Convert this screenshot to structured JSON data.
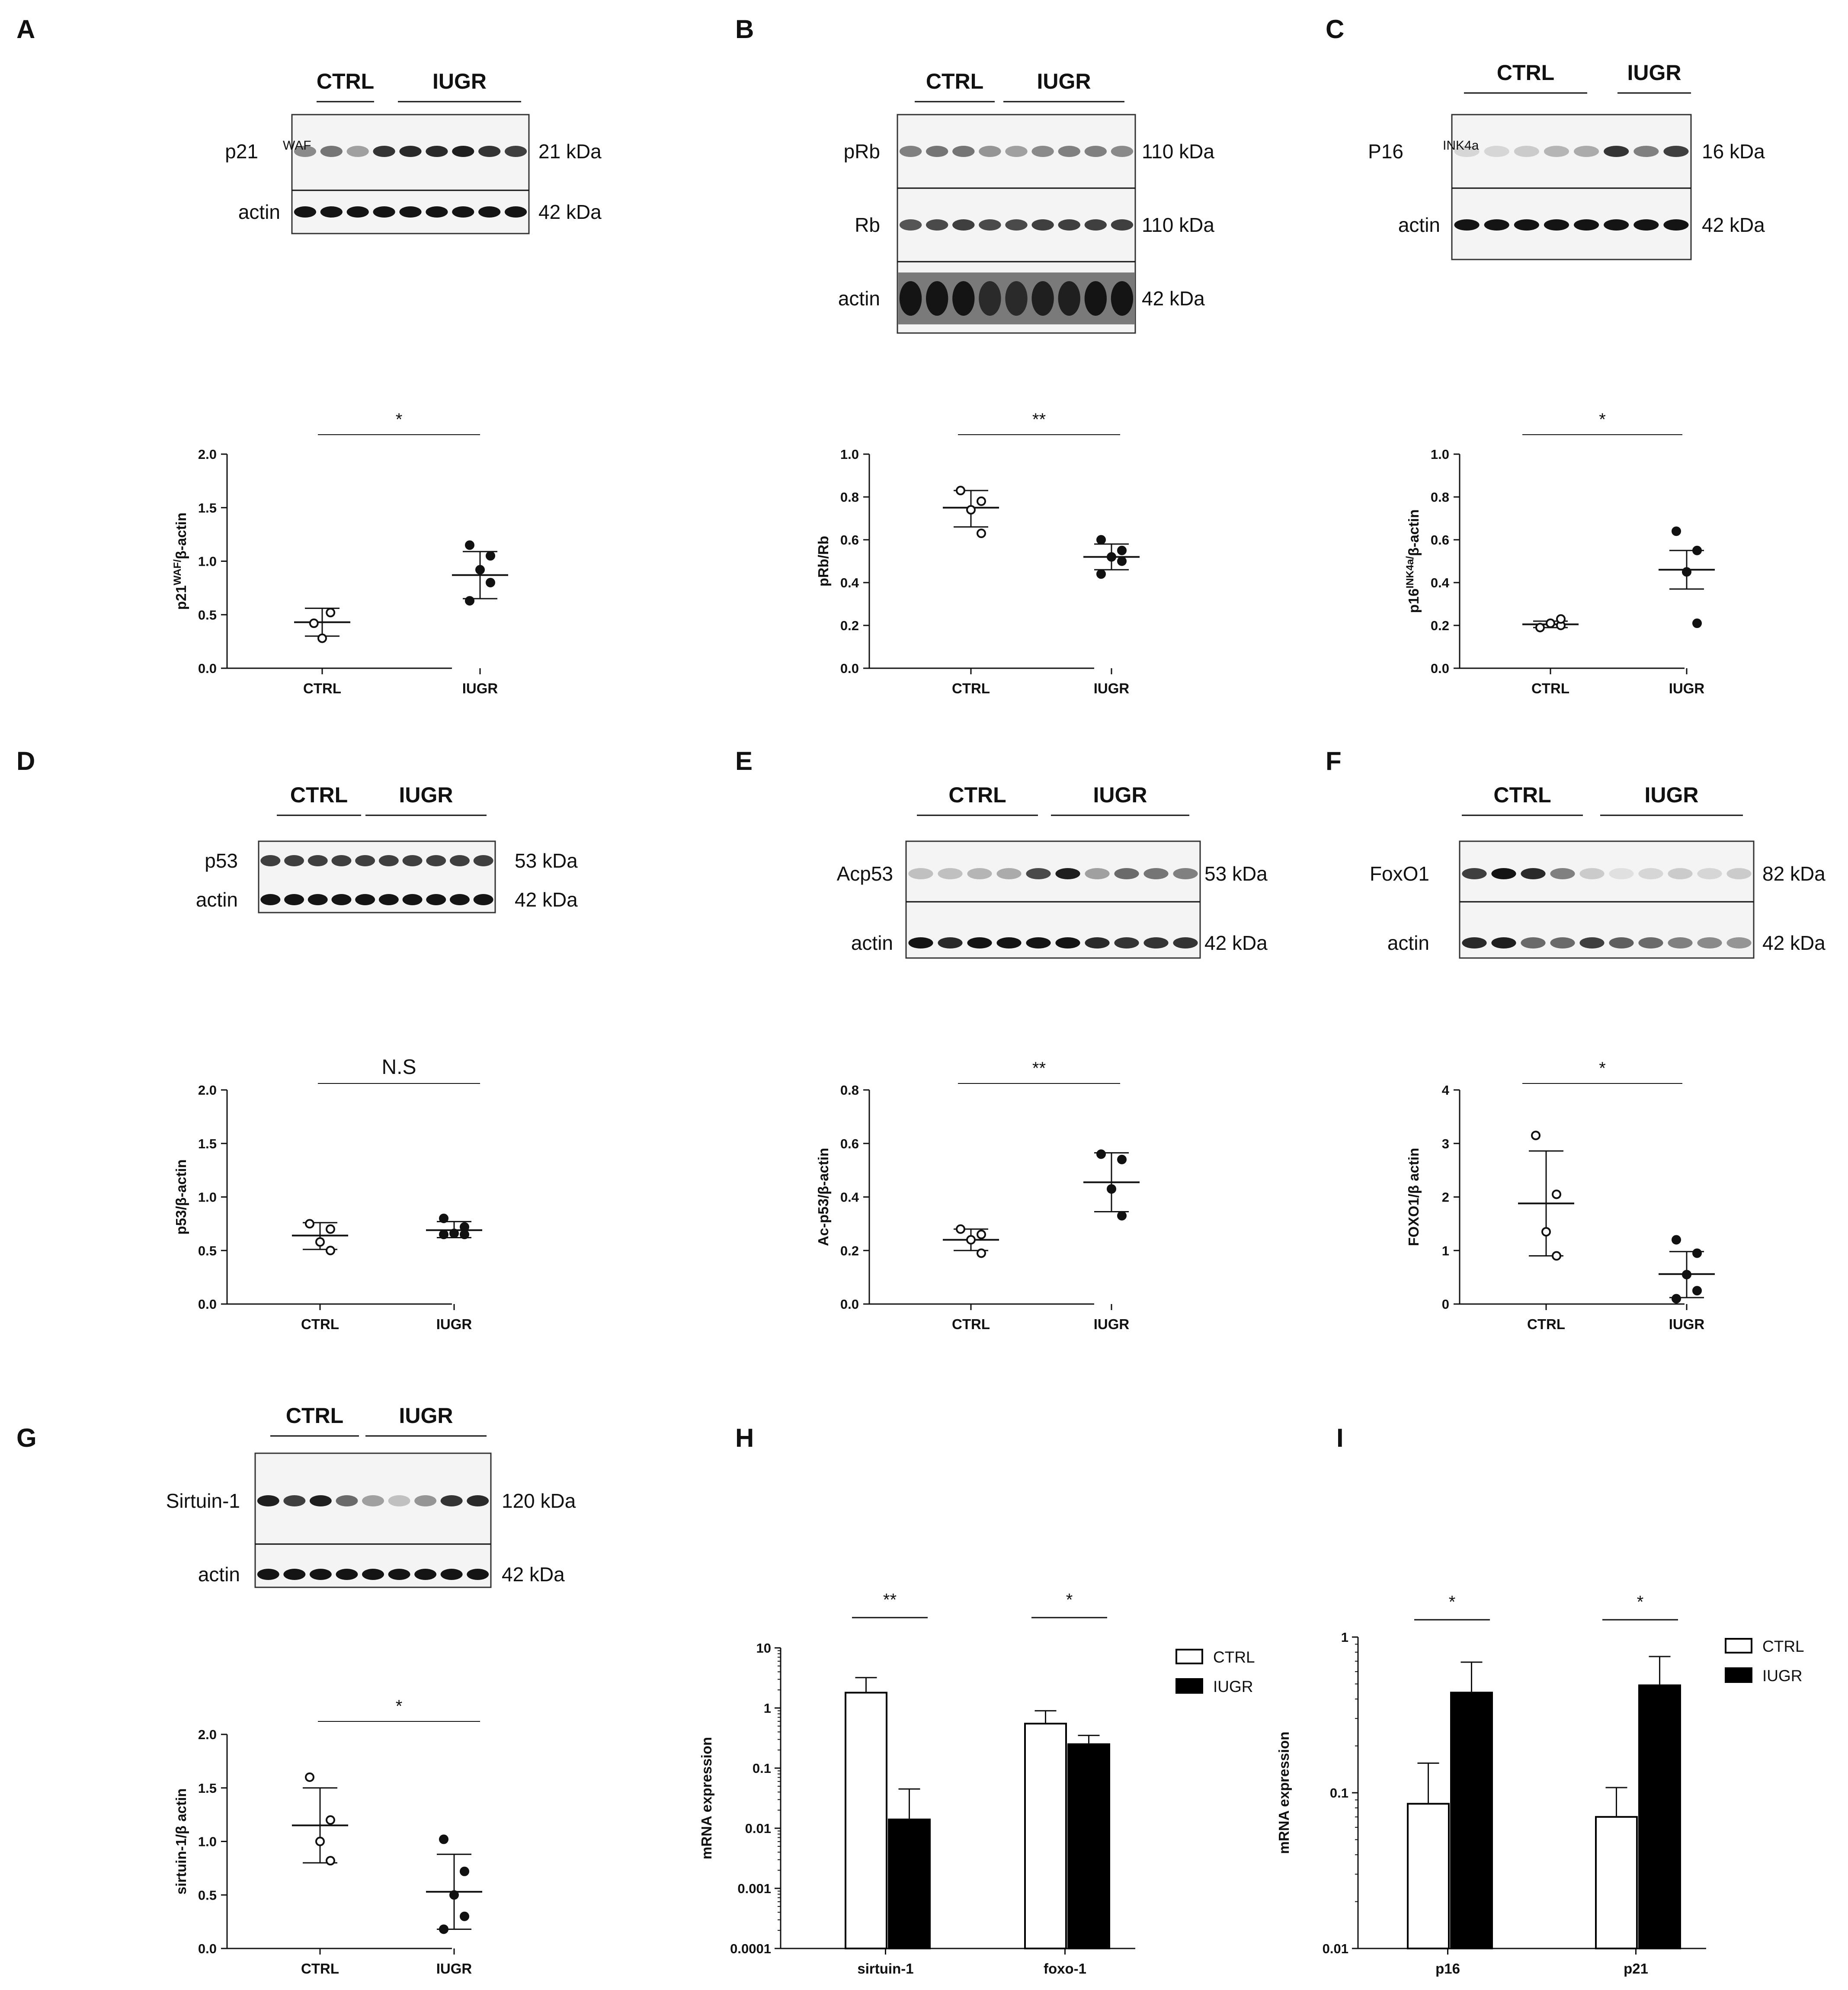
{
  "figure": {
    "panels": [
      {
        "label": "A",
        "groups": [
          "CTRL",
          "IUGR"
        ],
        "proteins": [
          {
            "name": "p21",
            "sup": "WAF",
            "kda": "21 kDa"
          },
          {
            "name": "actin",
            "sup": "",
            "kda": "42 kDa"
          }
        ]
      },
      {
        "label": "B",
        "groups": [
          "CTRL",
          "IUGR"
        ],
        "proteins": [
          {
            "name": "pRb",
            "sup": "",
            "kda": "110 kDa"
          },
          {
            "name": "Rb",
            "sup": "",
            "kda": "110 kDa"
          },
          {
            "name": "actin",
            "sup": "",
            "kda": "42 kDa"
          }
        ]
      },
      {
        "label": "C",
        "groups": [
          "CTRL",
          "IUGR"
        ],
        "proteins": [
          {
            "name": "P16",
            "sup": "INK4a",
            "kda": "16 kDa"
          },
          {
            "name": "actin",
            "sup": "",
            "kda": "42 kDa"
          }
        ]
      },
      {
        "label": "D",
        "groups": [
          "CTRL",
          "IUGR"
        ],
        "proteins": [
          {
            "name": "p53",
            "sup": "",
            "kda": "53 kDa"
          },
          {
            "name": "actin",
            "sup": "",
            "kda": "42 kDa"
          }
        ]
      },
      {
        "label": "E",
        "groups": [
          "CTRL",
          "IUGR"
        ],
        "proteins": [
          {
            "name": "Acp53",
            "sup": "",
            "kda": "53 kDa"
          },
          {
            "name": "actin",
            "sup": "",
            "kda": "42 kDa"
          }
        ]
      },
      {
        "label": "F",
        "groups": [
          "CTRL",
          "IUGR"
        ],
        "proteins": [
          {
            "name": "FoxO1",
            "sup": "",
            "kda": "82 kDa"
          },
          {
            "name": "actin",
            "sup": "",
            "kda": "42 kDa"
          }
        ]
      },
      {
        "label": "G",
        "groups": [
          "CTRL",
          "IUGR"
        ],
        "proteins": [
          {
            "name": "Sirtuin-1",
            "sup": "",
            "kda": "120 kDa"
          },
          {
            "name": "actin",
            "sup": "",
            "kda": "42 kDa"
          }
        ]
      },
      {
        "label": "H"
      },
      {
        "label": "I"
      }
    ]
  },
  "chart_data": [
    {
      "panel": "A",
      "type": "scatter",
      "ylabel": "p21",
      "ylabel_sup": "WAF/",
      "ylabel_rest": "β-actin",
      "yticks": [
        "0.0",
        "0.5",
        "1.0",
        "1.5",
        "2.0"
      ],
      "ylim": [
        0,
        2.0
      ],
      "categories": [
        "CTRL",
        "IUGR"
      ],
      "significance": "*",
      "series": [
        {
          "name": "CTRL",
          "open": true,
          "points": [
            0.42,
            0.52,
            0.28
          ],
          "mean": 0.43,
          "sd_low": 0.3,
          "sd_high": 0.56
        },
        {
          "name": "IUGR",
          "open": false,
          "points": [
            1.15,
            1.05,
            0.92,
            0.8,
            0.63
          ],
          "mean": 0.87,
          "sd_low": 0.65,
          "sd_high": 1.09
        }
      ]
    },
    {
      "panel": "B",
      "type": "scatter",
      "ylabel": "pRb/Rb",
      "yticks": [
        "0.0",
        "0.2",
        "0.4",
        "0.6",
        "0.8",
        "1.0"
      ],
      "ylim": [
        0,
        1.0
      ],
      "categories": [
        "CTRL",
        "IUGR"
      ],
      "significance": "**",
      "series": [
        {
          "name": "CTRL",
          "open": true,
          "points": [
            0.83,
            0.78,
            0.74,
            0.63
          ],
          "mean": 0.75,
          "sd_low": 0.66,
          "sd_high": 0.83
        },
        {
          "name": "IUGR",
          "open": false,
          "points": [
            0.6,
            0.55,
            0.52,
            0.5,
            0.44
          ],
          "mean": 0.52,
          "sd_low": 0.46,
          "sd_high": 0.58
        }
      ]
    },
    {
      "panel": "C",
      "type": "scatter",
      "ylabel": "p16",
      "ylabel_sup": "INK4a/",
      "ylabel_rest": "β-actin",
      "yticks": [
        "0.0",
        "0.2",
        "0.4",
        "0.6",
        "0.8",
        "1.0"
      ],
      "ylim": [
        0,
        1.0
      ],
      "categories": [
        "CTRL",
        "IUGR"
      ],
      "significance": "*",
      "series": [
        {
          "name": "CTRL",
          "open": true,
          "points": [
            0.19,
            0.2,
            0.21,
            0.23
          ],
          "mean": 0.205,
          "sd_low": 0.19,
          "sd_high": 0.22
        },
        {
          "name": "IUGR",
          "open": false,
          "points": [
            0.64,
            0.55,
            0.45,
            0.21
          ],
          "mean": 0.46,
          "sd_low": 0.37,
          "sd_high": 0.55
        }
      ]
    },
    {
      "panel": "D",
      "type": "scatter",
      "ylabel": "p53/β-actin",
      "yticks": [
        "0.0",
        "0.5",
        "1.0",
        "1.5",
        "2.0"
      ],
      "ylim": [
        0,
        2.0
      ],
      "categories": [
        "CTRL",
        "IUGR"
      ],
      "significance": "N.S",
      "series": [
        {
          "name": "CTRL",
          "open": true,
          "points": [
            0.75,
            0.7,
            0.58,
            0.5
          ],
          "mean": 0.64,
          "sd_low": 0.51,
          "sd_high": 0.76
        },
        {
          "name": "IUGR",
          "open": false,
          "points": [
            0.8,
            0.72,
            0.66,
            0.65,
            0.65
          ],
          "mean": 0.69,
          "sd_low": 0.62,
          "sd_high": 0.77
        }
      ]
    },
    {
      "panel": "E",
      "type": "scatter",
      "ylabel": "Ac-p53/β-actin",
      "yticks": [
        "0.0",
        "0.2",
        "0.4",
        "0.6",
        "0.8"
      ],
      "ylim": [
        0,
        0.8
      ],
      "categories": [
        "CTRL",
        "IUGR"
      ],
      "significance": "**",
      "series": [
        {
          "name": "CTRL",
          "open": true,
          "points": [
            0.28,
            0.26,
            0.24,
            0.19
          ],
          "mean": 0.24,
          "sd_low": 0.2,
          "sd_high": 0.28
        },
        {
          "name": "IUGR",
          "open": false,
          "points": [
            0.56,
            0.54,
            0.43,
            0.33
          ],
          "mean": 0.455,
          "sd_low": 0.345,
          "sd_high": 0.565
        }
      ]
    },
    {
      "panel": "F",
      "type": "scatter",
      "ylabel": "FOXO1/β actin",
      "yticks": [
        "0",
        "1",
        "2",
        "3",
        "4"
      ],
      "ylim": [
        0,
        4
      ],
      "categories": [
        "CTRL",
        "IUGR"
      ],
      "significance": "*",
      "series": [
        {
          "name": "CTRL",
          "open": true,
          "points": [
            3.15,
            2.05,
            1.35,
            0.9
          ],
          "mean": 1.88,
          "sd_low": 0.9,
          "sd_high": 2.86
        },
        {
          "name": "IUGR",
          "open": false,
          "points": [
            1.2,
            0.95,
            0.55,
            0.25,
            0.1
          ],
          "mean": 0.56,
          "sd_low": 0.12,
          "sd_high": 0.98
        }
      ]
    },
    {
      "panel": "G",
      "type": "scatter",
      "ylabel": "sirtuin-1/β actin",
      "yticks": [
        "0.0",
        "0.5",
        "1.0",
        "1.5",
        "2.0"
      ],
      "ylim": [
        0,
        2.0
      ],
      "categories": [
        "CTRL",
        "IUGR"
      ],
      "significance": "*",
      "series": [
        {
          "name": "CTRL",
          "open": true,
          "points": [
            1.6,
            1.2,
            1.0,
            0.82
          ],
          "mean": 1.15,
          "sd_low": 0.8,
          "sd_high": 1.5
        },
        {
          "name": "IUGR",
          "open": false,
          "points": [
            1.02,
            0.72,
            0.5,
            0.3,
            0.18
          ],
          "mean": 0.53,
          "sd_low": 0.18,
          "sd_high": 0.88
        }
      ]
    },
    {
      "panel": "H",
      "type": "bar",
      "scale": "log",
      "ylabel": "mRNA expression",
      "yticks": [
        "0.0001",
        "0.001",
        "0.01",
        "0.1",
        "1",
        "10"
      ],
      "ylim": [
        0.0001,
        10
      ],
      "categories": [
        "sirtuin-1",
        "foxo-1"
      ],
      "significance": [
        "**",
        "*"
      ],
      "legend": [
        "CTRL",
        "IUGR"
      ],
      "series": [
        {
          "name": "CTRL",
          "values": [
            1.8,
            0.55
          ],
          "err": [
            3.2,
            0.9
          ]
        },
        {
          "name": "IUGR",
          "values": [
            0.014,
            0.25
          ],
          "err": [
            0.045,
            0.35
          ]
        }
      ]
    },
    {
      "panel": "I",
      "type": "bar",
      "scale": "log",
      "ylabel": "mRNA expression",
      "yticks": [
        "0.01",
        "0.1",
        "1"
      ],
      "ylim": [
        0.01,
        1
      ],
      "categories": [
        "p16",
        "p21"
      ],
      "significance": [
        "*",
        "*"
      ],
      "legend": [
        "CTRL",
        "IUGR"
      ],
      "series": [
        {
          "name": "CTRL",
          "values": [
            0.085,
            0.07
          ],
          "err": [
            0.155,
            0.108
          ]
        },
        {
          "name": "IUGR",
          "values": [
            0.44,
            0.49
          ],
          "err": [
            0.69,
            0.75
          ]
        }
      ]
    }
  ]
}
